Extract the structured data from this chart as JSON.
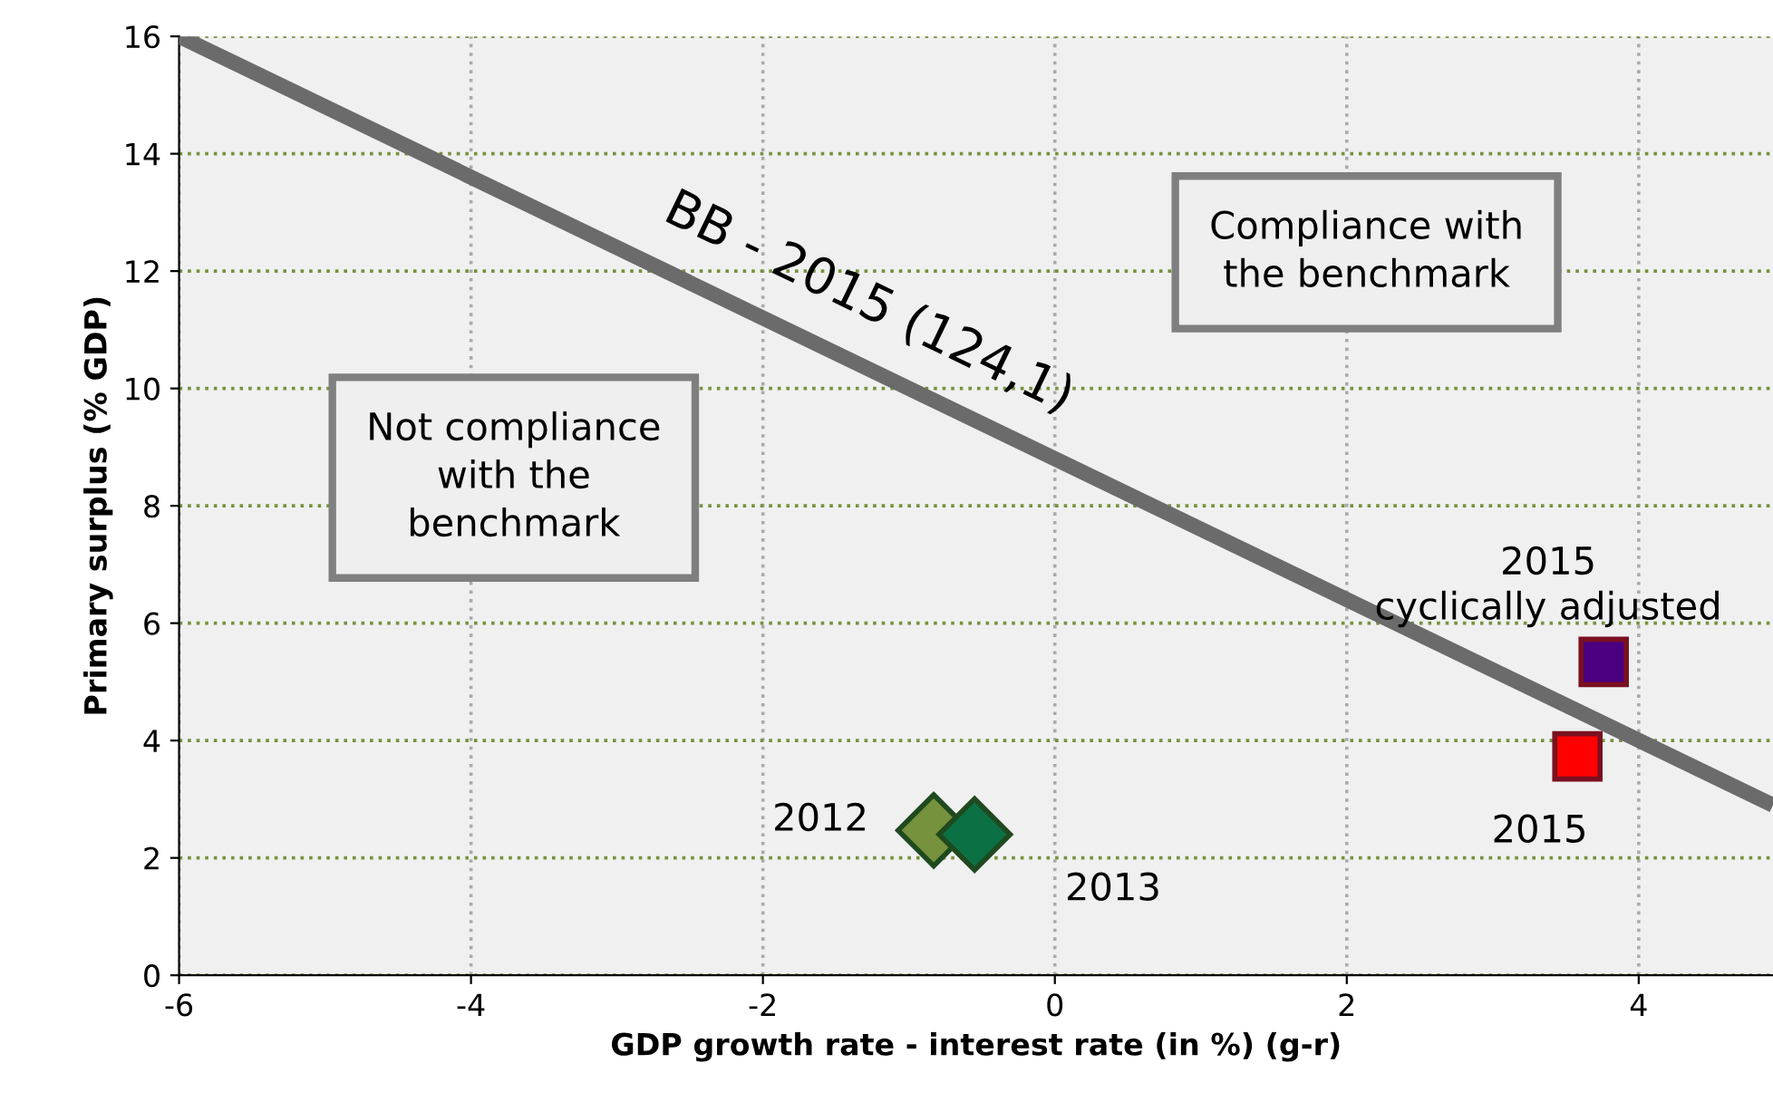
{
  "chart_data": {
    "type": "scatter",
    "xlabel": "GDP growth rate - interest rate (in %) (g-r)",
    "ylabel": "Primary surplus (% GDP)",
    "xlim": [
      -6,
      4.92
    ],
    "ylim": [
      0,
      16
    ],
    "xticks": [
      -6,
      -4,
      -2,
      0,
      2,
      4
    ],
    "yticks": [
      0,
      2,
      4,
      6,
      8,
      10,
      12,
      14,
      16
    ],
    "grid": true,
    "annotations": [
      "Compliance with\nthe benchmark",
      "Not compliance\nwith the\nbenchmark"
    ],
    "series": [
      {
        "name": "BB - 2015 (124,1)",
        "type": "line",
        "color": "#6b6b6b",
        "x": [
          -6,
          4.92
        ],
        "values": [
          16,
          2.9
        ],
        "marker": "none",
        "line_style": "solid"
      },
      {
        "name": "2012",
        "color": "#76923c",
        "x": [
          -0.83
        ],
        "values": [
          2.47
        ],
        "marker": "diamond"
      },
      {
        "name": "2013",
        "color": "#0b7043",
        "x": [
          -0.55
        ],
        "values": [
          2.4
        ],
        "marker": "diamond"
      },
      {
        "name": "2015",
        "color": "#ff0000",
        "x": [
          3.58
        ],
        "values": [
          3.73
        ],
        "marker": "square"
      },
      {
        "name": "2015\ncyclically adjusted",
        "color": "#4b0082",
        "x": [
          3.76
        ],
        "values": [
          5.34
        ],
        "marker": "square"
      }
    ]
  }
}
